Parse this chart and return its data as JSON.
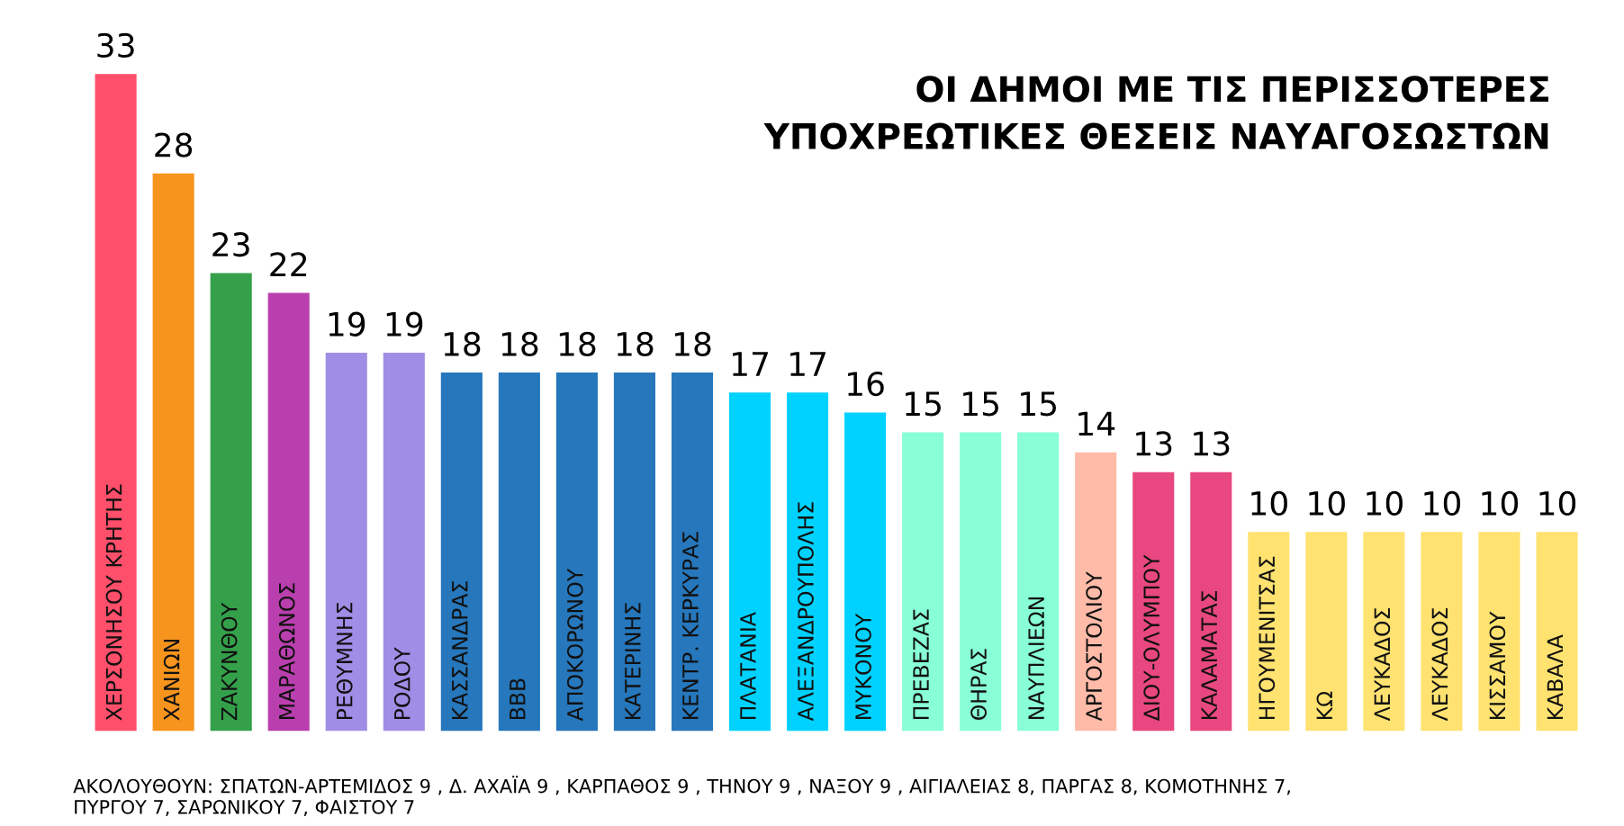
{
  "chart_data": {
    "type": "bar",
    "title": "ΟΙ ΔΗΜΟΙ ΜΕ ΤΙΣ ΠΕΡΙΣΣΟΤΕΡΕΣ\nΥΠΟΧΡΕΩΤΙΚΕΣ ΘΕΣΕΙΣ ΝΑΥΑΓΟΣΩΣΤΩΝ",
    "categories": [
      "ΧΕΡΣΟΝΗΣΟΥ ΚΡΗΤΗΣ",
      "ΧΑΝΙΩΝ",
      "ΖΑΚΥΝΘΟΥ",
      "ΜΑΡΑΘΩΝΟΣ",
      "ΡΕΘΥΜΝΗΣ",
      "ΡΟΔΟΥ",
      "ΚΑΣΣΑΝΔΡΑΣ",
      "ΒΒΒ",
      "ΑΠΟΚΟΡΩΝΟΥ",
      "ΚΑΤΕΡΙΝΗΣ",
      "ΚΕΝΤΡ. ΚΕΡΚΥΡΑΣ",
      "ΠΛΑΤΑΝΙΑ",
      "ΑΛΕΞΑΝΔΡΟΥΠΟΛΗΣ",
      "ΜΥΚΟΝΟΥ",
      "ΠΡΕΒΕΖΑΣ",
      "ΘΗΡΑΣ",
      "ΝΑΥΠΛΙΕΩΝ",
      "ΑΡΓΟΣΤΟΛΙΟΥ",
      "ΔΙΟΥ-ΟΛΥΜΠΟΥ",
      "ΚΑΛΑΜΑΤΑΣ",
      "ΗΓΟΥΜΕΝΙΤΣΑΣ",
      "ΚΩ",
      "ΛΕΥΚΑΔΟΣ",
      "ΛΕΥΚΑΔΟΣ",
      "ΚΙΣΣΑΜΟΥ",
      "ΚΑΒΑΛΑ"
    ],
    "values": [
      33,
      28,
      23,
      22,
      19,
      19,
      18,
      18,
      18,
      18,
      18,
      17,
      17,
      16,
      15,
      15,
      15,
      14,
      13,
      13,
      10,
      10,
      10,
      10,
      10,
      10
    ],
    "colors": [
      "#ff4f6a",
      "#f7941d",
      "#34a04a",
      "#b93fae",
      "#a08de6",
      "#a08de6",
      "#2677bc",
      "#2677bc",
      "#2677bc",
      "#2677bc",
      "#2677bc",
      "#00d2ff",
      "#00d2ff",
      "#00d2ff",
      "#88ffd6",
      "#88ffd6",
      "#88ffd6",
      "#ffbba8",
      "#e8487f",
      "#e8487f",
      "#ffe270",
      "#ffe270",
      "#ffe270",
      "#ffe270",
      "#ffe270",
      "#ffe270"
    ],
    "data_labels": true,
    "annotations": [
      "ΑΚΟΛΟΥΘΟΥΝ: ΣΠΑΤΩΝ-ΑΡΤΕΜΙΔΟΣ 9 , Δ. ΑΧΑΪΑ 9 , ΚΑΡΠΑΘΟΣ 9 , ΤΗΝΟΥ 9 , ΝΑΞΟΥ 9 , ΑΙΓΙΑΛΕΙΑΣ 8, ΠΑΡΓΑΣ 8, ΚΟΜΟΤΗΝΗΣ 7,\nΠΥΡΓΟΥ 7, ΣΑΡΩΝΙΚΟΥ 7, ΦΑΙΣΤΟΥ 7"
    ]
  }
}
